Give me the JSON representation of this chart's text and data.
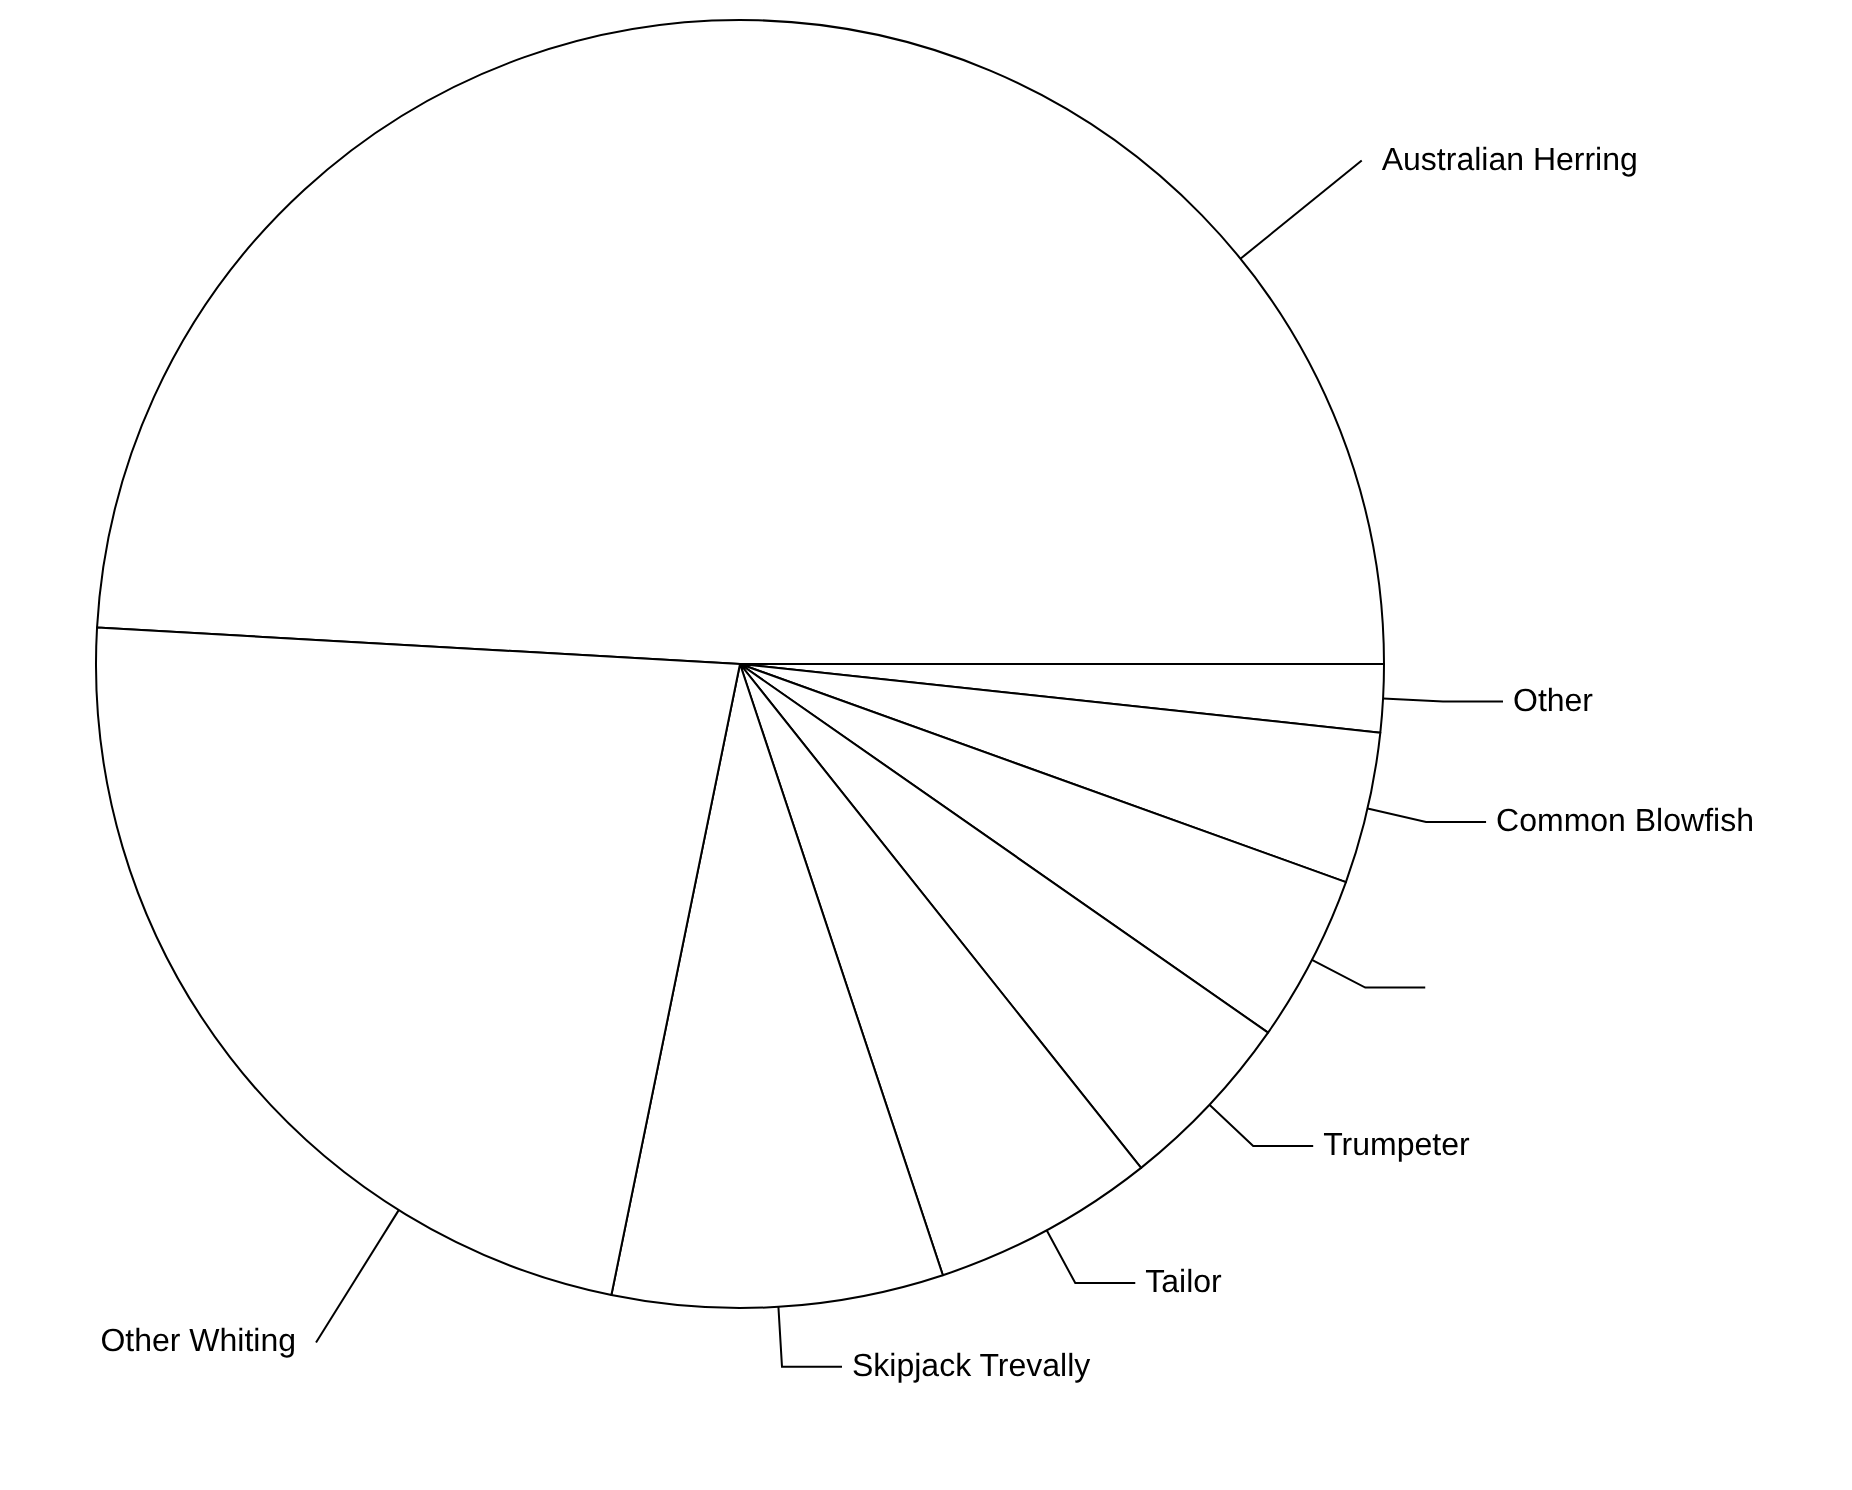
{
  "chart_data": {
    "type": "pie",
    "categories": [
      "Australian Herring",
      "Other",
      "Common Blowfish",
      null,
      "Trumpeter",
      "Tailor",
      "Skipjack Trevally",
      "Other Whiting"
    ],
    "values": [
      49.1,
      1.7,
      3.8,
      4.2,
      4.6,
      5.6,
      8.3,
      22.7
    ],
    "colors": [
      "#ffffff",
      "#ffffff",
      "#ffffff",
      "#ffffff",
      "#ffffff",
      "#ffffff",
      "#ffffff",
      "#ffffff"
    ]
  }
}
